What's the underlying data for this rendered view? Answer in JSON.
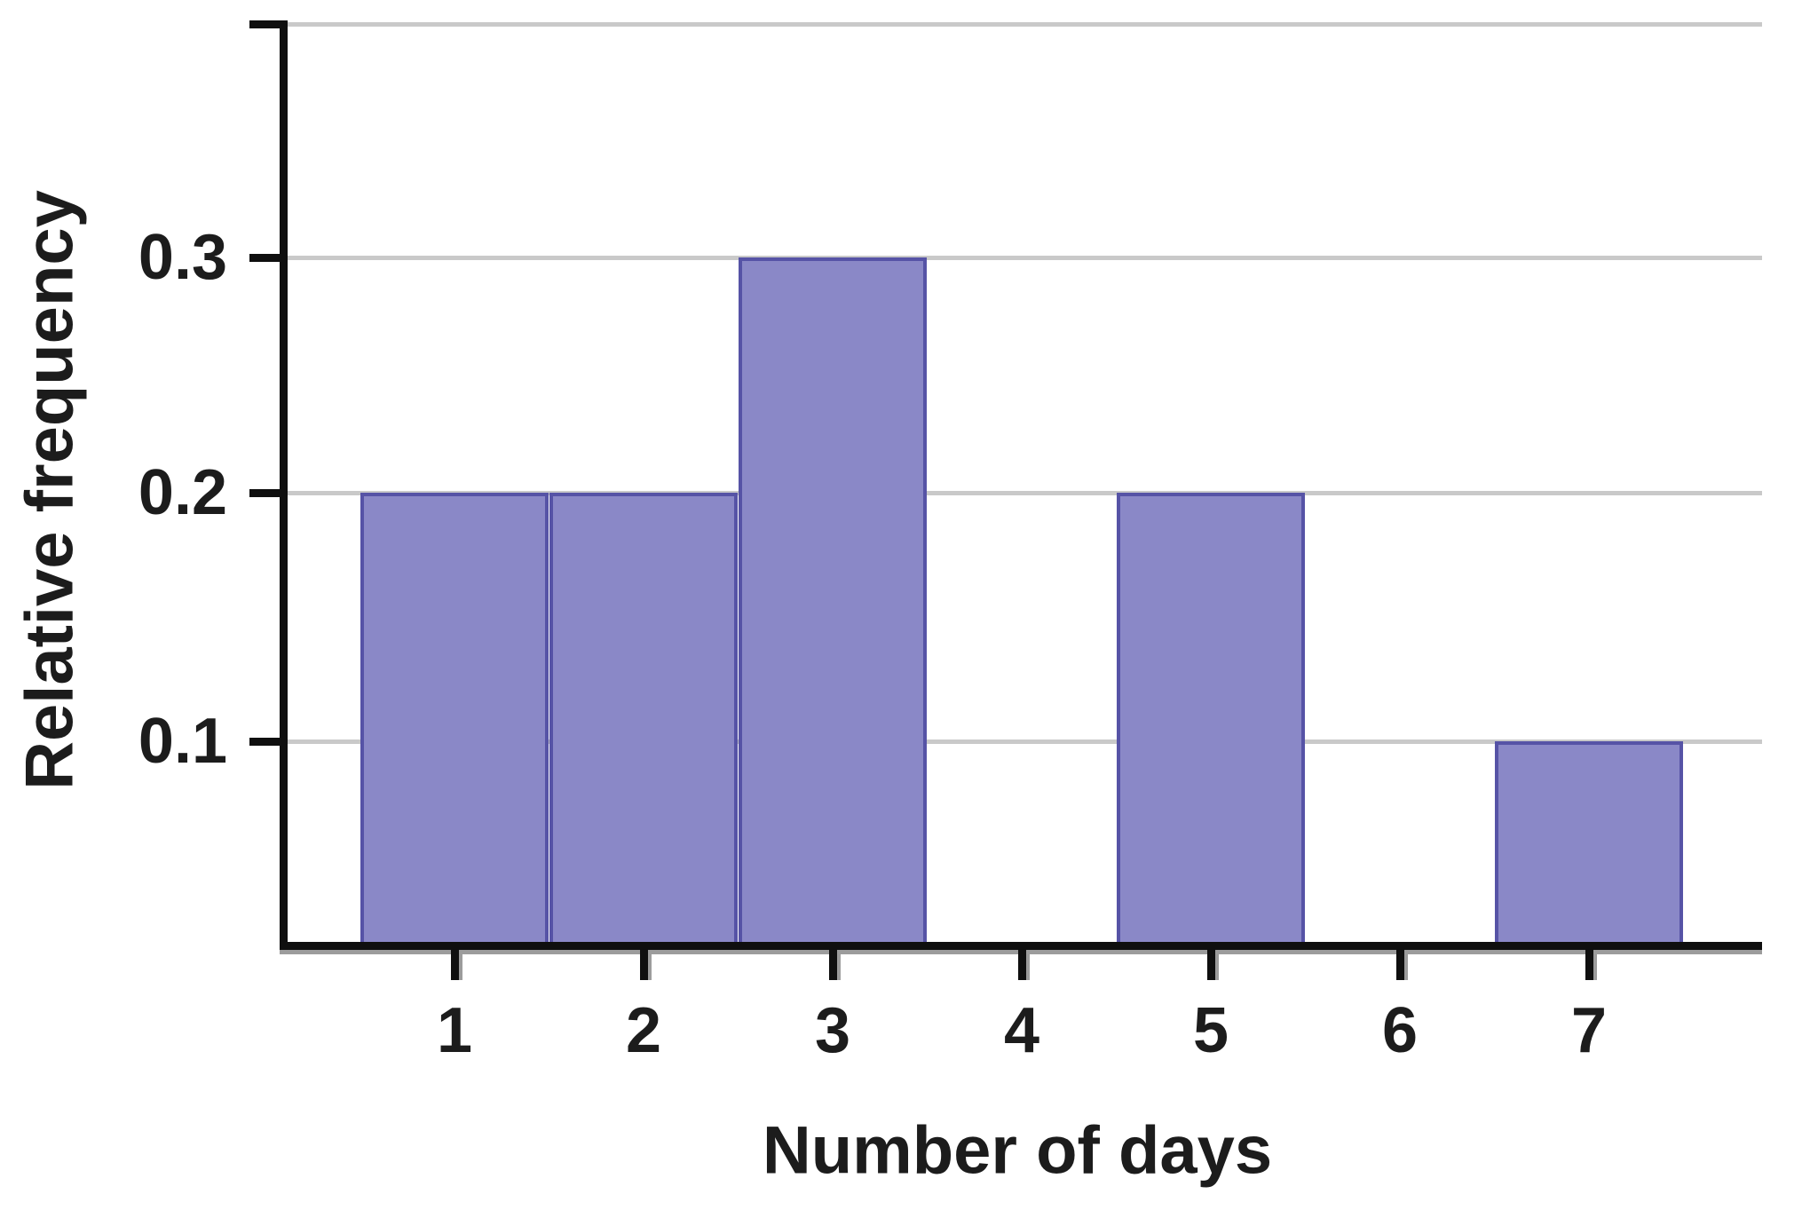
{
  "chart_data": {
    "type": "bar",
    "variant": "relative-frequency-histogram",
    "title": "",
    "xlabel": "Number of days",
    "ylabel": "Relative frequency",
    "categories": [
      "1",
      "2",
      "3",
      "4",
      "5",
      "6",
      "7"
    ],
    "values": [
      0.2,
      0.2,
      0.3,
      0,
      0.2,
      0,
      0.1
    ],
    "x_tick_labels": [
      "1",
      "2",
      "3",
      "4",
      "5",
      "6",
      "7"
    ],
    "y_ticks": [
      0.1,
      0.2,
      0.3
    ],
    "y_tick_labels": [
      "0.1",
      "0.2",
      "0.3"
    ],
    "gridlines_at": [
      0.1,
      0.2,
      0.3,
      0.4
    ],
    "ylim": [
      0,
      0.4
    ],
    "grid": true,
    "legend": "none",
    "colors": {
      "bar_fill": "#8a88c7",
      "bar_border": "#5653a6",
      "gridline": "#c9c9c9",
      "axis": "#0f0f0f",
      "axis_shadow": "#9c9c9c",
      "text": "#1c1c1c",
      "background": "#ffffff"
    }
  }
}
